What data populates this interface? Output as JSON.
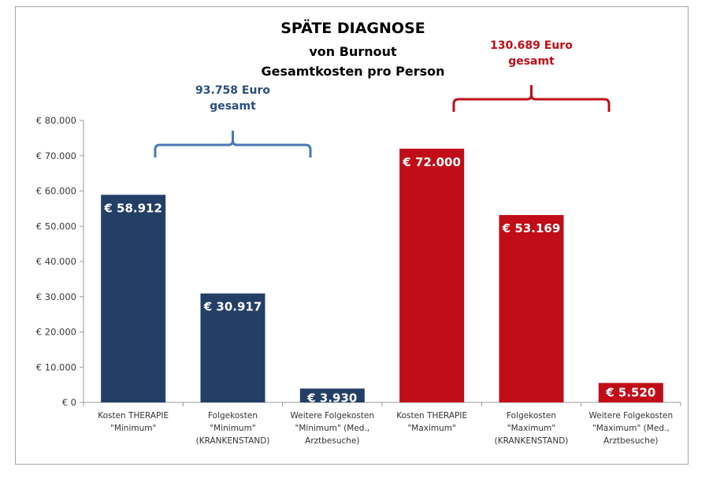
{
  "chart_data": {
    "type": "bar",
    "title": "SPÄTE DIAGNOSE",
    "subtitle_lines": [
      "von Burnout",
      "Gesamtkosten pro Person"
    ],
    "xlabel": "",
    "ylabel": "",
    "ylim": [
      0,
      80000
    ],
    "yticks": [
      0,
      10000,
      20000,
      30000,
      40000,
      50000,
      60000,
      70000,
      80000
    ],
    "ytick_labels": [
      "€ 0",
      "€ 10.000",
      "€ 20.000",
      "€ 30.000",
      "€ 40.000",
      "€ 50.000",
      "€ 60.000",
      "€ 70.000",
      "€ 80.000"
    ],
    "grid": false,
    "legend": "none",
    "categories": [
      [
        "Kosten THERAPIE",
        "\"Minimum\""
      ],
      [
        "Folgekosten",
        "\"Minimum\"",
        "(KRANKENSTAND)"
      ],
      [
        "Weitere Folgekosten",
        "\"Minimum\" (Med.,",
        "Arztbesuche)"
      ],
      [
        "Kosten THERAPIE",
        "\"Maximum\""
      ],
      [
        "Folgekosten",
        "\"Maximum\"",
        "(KRANKENSTAND)"
      ],
      [
        "Weitere Folgekosten",
        "\"Maximum\" (Med.,",
        "Arztbesuche)"
      ]
    ],
    "values": [
      58912,
      30917,
      3930,
      72000,
      53169,
      5520
    ],
    "data_labels": [
      "€ 58.912",
      "€ 30.917",
      "€ 3.930",
      "€ 72.000",
      "€ 53.169",
      "€ 5.520"
    ],
    "colors": [
      "#243f66",
      "#243f66",
      "#243f66",
      "#c00d17",
      "#c00d17",
      "#c00d17"
    ],
    "annotations": [
      {
        "lines": [
          "93.758 Euro",
          "gesamt"
        ],
        "color": "#4a78b8",
        "text_color": "#2c4e7c",
        "bracket_from_category": 0,
        "bracket_to_category": 2
      },
      {
        "lines": [
          "130.689 Euro",
          "gesamt"
        ],
        "color": "#c00d17",
        "text_color": "#c00d17",
        "bracket_from_category": 3,
        "bracket_to_category": 5
      }
    ]
  }
}
